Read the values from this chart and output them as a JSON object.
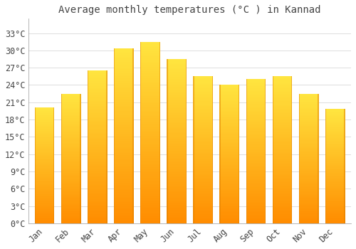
{
  "title": "Average monthly temperatures (°C ) in Kannad",
  "months": [
    "Jan",
    "Feb",
    "Mar",
    "Apr",
    "May",
    "Jun",
    "Jul",
    "Aug",
    "Sep",
    "Oct",
    "Nov",
    "Dec"
  ],
  "values": [
    20.1,
    22.5,
    26.5,
    30.4,
    31.5,
    28.5,
    25.5,
    24.1,
    25.0,
    25.5,
    22.5,
    19.8
  ],
  "bar_color_light": "#FFD04A",
  "bar_color_main": "#FFA500",
  "bar_color_edge": "#E08000",
  "background_color": "#FFFFFF",
  "grid_color": "#DDDDDD",
  "text_color": "#444444",
  "ytick_labels": [
    "0°C",
    "3°C",
    "6°C",
    "9°C",
    "12°C",
    "15°C",
    "18°C",
    "21°C",
    "24°C",
    "27°C",
    "30°C",
    "33°C"
  ],
  "ytick_values": [
    0,
    3,
    6,
    9,
    12,
    15,
    18,
    21,
    24,
    27,
    30,
    33
  ],
  "ylim": [
    0,
    35.5
  ],
  "title_fontsize": 10,
  "tick_fontsize": 8.5
}
